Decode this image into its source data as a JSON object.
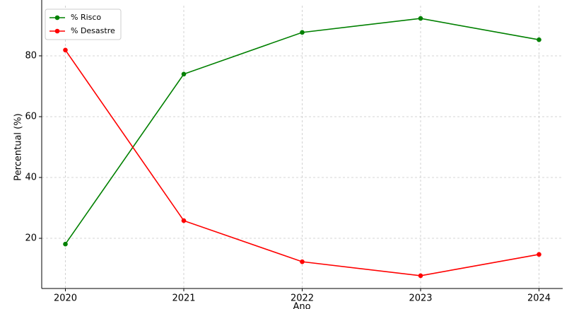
{
  "chart_data": {
    "type": "line",
    "x": [
      2020,
      2021,
      2022,
      2023,
      2024
    ],
    "series": [
      {
        "name": "% Risco",
        "color": "#008000",
        "values": [
          18.1,
          74,
          87.7,
          92.3,
          85.3
        ]
      },
      {
        "name": "% Desastre",
        "color": "#ff0000",
        "values": [
          81.9,
          25.8,
          12.3,
          7.7,
          14.7
        ]
      }
    ],
    "xlim": [
      2019.8,
      2024.2
    ],
    "xticks": [
      2020,
      2021,
      2022,
      2023,
      2024
    ],
    "ylim": [
      3.5,
      96.5
    ],
    "yticks": [
      20,
      40,
      60,
      80
    ],
    "xlabel": "Ano",
    "ylabel": "Percentual (%)",
    "grid": true,
    "legend": "upper left"
  }
}
